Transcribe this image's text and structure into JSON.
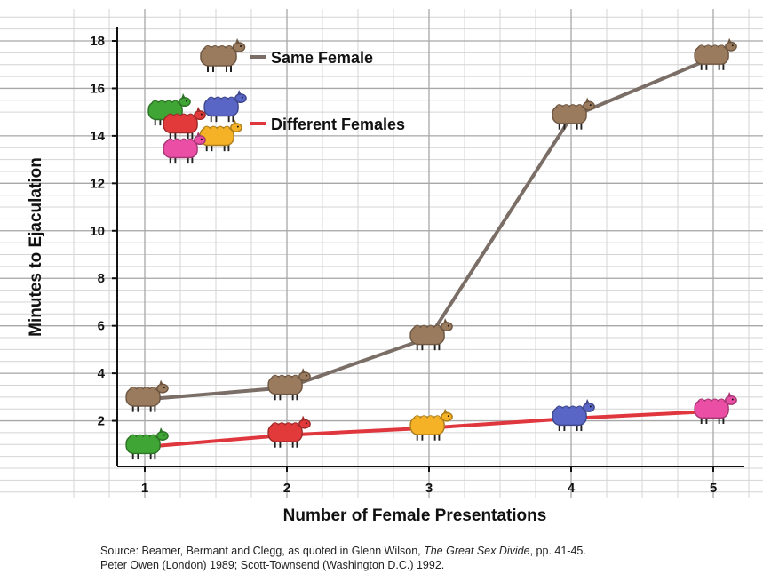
{
  "chart_data": {
    "type": "line",
    "xlabel": "Number of Female Presentations",
    "ylabel": "Minutes to Ejaculation",
    "x": [
      1,
      2,
      3,
      4,
      5
    ],
    "xlim": [
      0.8,
      5.3
    ],
    "ylim": [
      0,
      18
    ],
    "yticks": [
      2,
      4,
      6,
      8,
      10,
      12,
      14,
      16,
      18
    ],
    "grid": true,
    "legend_position": "top-left",
    "series": [
      {
        "name": "Same Female",
        "color": "#7a6e66",
        "values": [
          2.9,
          3.4,
          5.5,
          14.8,
          17.3
        ],
        "marker_colors": [
          "#9b7b5e",
          "#9b7b5e",
          "#9b7b5e",
          "#9b7b5e",
          "#9b7b5e"
        ]
      },
      {
        "name": "Different Females",
        "color": "#e0373f",
        "values": [
          0.9,
          1.4,
          1.7,
          2.1,
          2.4
        ],
        "marker_colors": [
          "#3fa535",
          "#e23a3a",
          "#f5b227",
          "#5a66c6",
          "#ea4fa5"
        ]
      }
    ],
    "legend_icon_colors": {
      "same": [
        "#9b7b5e"
      ],
      "different": [
        "#3fa535",
        "#5a66c6",
        "#e23a3a",
        "#f5b227",
        "#ea4fa5"
      ]
    },
    "marker": "sheep-icon"
  },
  "source": {
    "line1_prefix": "Source: Beamer, Bermant and Clegg, as quoted in Glenn Wilson, ",
    "line1_title": "The Great Sex Divide",
    "line1_suffix": ", pp. 41-45.",
    "line2": "Peter Owen (London) 1989; Scott-Townsend (Washington D.C.) 1992."
  }
}
